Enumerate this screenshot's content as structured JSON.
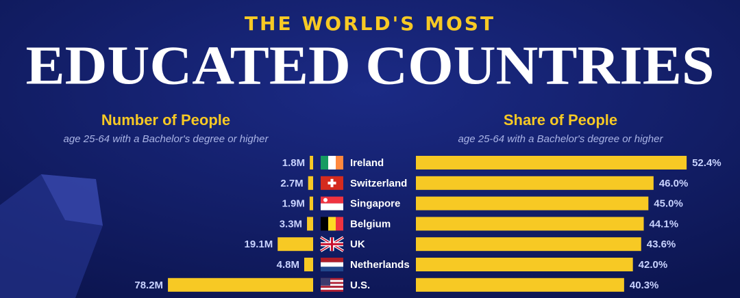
{
  "chart_data": {
    "type": "bar",
    "title": "THE WORLD'S MOST",
    "subtitle": "EDUCATED COUNTRIES",
    "categories": [
      "Ireland",
      "Switzerland",
      "Singapore",
      "Belgium",
      "UK",
      "Netherlands",
      "U.S."
    ],
    "series": [
      {
        "name": "Number of People",
        "note": "age 25-64 with a Bachelor's degree or higher",
        "color": "#f7c924",
        "values": [
          1.8,
          2.7,
          1.9,
          3.3,
          19.1,
          4.8,
          78.2
        ],
        "value_labels": [
          "1.8M",
          "2.7M",
          "1.9M",
          "3.3M",
          "19.1M",
          "4.8M",
          "78.2M"
        ]
      },
      {
        "name": "Share of People",
        "note": "age 25-64 with a Bachelor's degree or higher",
        "color": "#f7c924",
        "values": [
          52.4,
          46.0,
          45.0,
          44.1,
          43.6,
          42.0,
          40.3
        ],
        "value_labels": [
          "52.4%",
          "46.0%",
          "45.0%",
          "44.1%",
          "43.6%",
          "42.0%",
          "40.3%"
        ]
      }
    ]
  }
}
